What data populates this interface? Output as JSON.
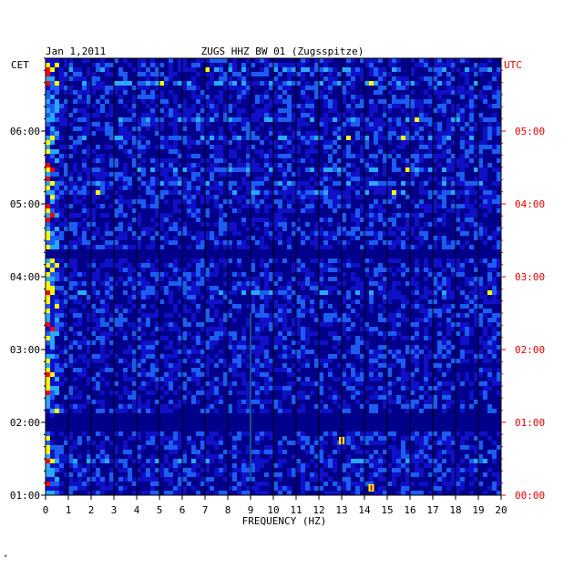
{
  "chart_data": {
    "type": "heatmap",
    "date": "Jan 1,2011",
    "title": "ZUGS HHZ BW 01 (Zugsspitze)",
    "xlabel": "FREQUENCY (HZ)",
    "xlim": [
      0,
      20
    ],
    "x_ticks": [
      "0",
      "1",
      "2",
      "3",
      "4",
      "5",
      "6",
      "7",
      "8",
      "9",
      "10",
      "11",
      "12",
      "13",
      "14",
      "15",
      "16",
      "17",
      "18",
      "19",
      "20"
    ],
    "left_axis_label": "CET",
    "right_axis_label": "UTC",
    "left_ticks": [
      "06:00",
      "05:00",
      "04:00",
      "03:00",
      "02:00",
      "01:00"
    ],
    "right_ticks": [
      "05:00",
      "04:00",
      "03:00",
      "02:00",
      "01:00",
      "00:00"
    ],
    "y_tick_hours_from_bottom": [
      5,
      4,
      3,
      2,
      1,
      0
    ],
    "utc_range_hours": [
      0,
      6
    ],
    "grid": "vertical lines at each 1 Hz",
    "colors": {
      "background_spectrum": "#1010c8",
      "low": "#00008a",
      "mid": "#2aa8ff",
      "high": "#ffff00",
      "peak": "#ff0000",
      "cet_color": "#000000",
      "utc_color": "#e00000"
    },
    "features": [
      {
        "kind": "quiet-band",
        "utc_hours": [
          3.25,
          3.4
        ]
      },
      {
        "kind": "quiet-band",
        "utc_hours": [
          0.9,
          1.15
        ]
      },
      {
        "kind": "strong-low-frequency",
        "freq_hz": [
          0,
          0.6
        ]
      },
      {
        "kind": "persistent-line",
        "freq_hz": 9.0,
        "utc_hours": [
          0.2,
          2.5
        ]
      },
      {
        "kind": "transient",
        "freq_hz": 13.0,
        "utc_hours": [
          0.7,
          0.8
        ]
      },
      {
        "kind": "transient",
        "freq_hz": 14.3,
        "utc_hours": [
          0.05,
          0.15
        ]
      }
    ]
  }
}
